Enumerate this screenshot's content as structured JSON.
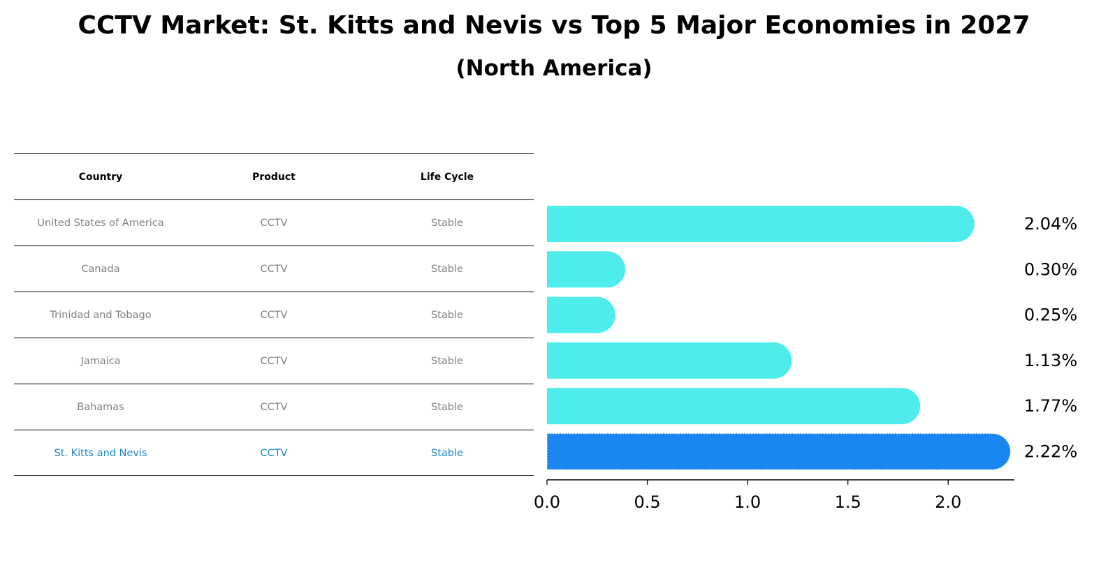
{
  "title": "CCTV Market: St. Kitts and Nevis vs Top 5 Major Economies in 2027",
  "subtitle": "(North America)",
  "table": {
    "headers": [
      "Country",
      "Product",
      "Life Cycle"
    ],
    "rows": [
      {
        "country": "United States of America",
        "product": "CCTV",
        "life_cycle": "Stable"
      },
      {
        "country": "Canada",
        "product": "CCTV",
        "life_cycle": "Stable"
      },
      {
        "country": "Trinidad and Tobago",
        "product": "CCTV",
        "life_cycle": "Stable"
      },
      {
        "country": "Jamaica",
        "product": "CCTV",
        "life_cycle": "Stable"
      },
      {
        "country": "Bahamas",
        "product": "CCTV",
        "life_cycle": "Stable"
      },
      {
        "country": "St. Kitts and Nevis",
        "product": "CCTV",
        "life_cycle": "Stable"
      }
    ]
  },
  "colors": {
    "bar": "#4EEDEB",
    "highlight_bar": "#1A86F2",
    "highlight_text": "#1A86C9",
    "row_text": "#808080"
  },
  "chart_data": {
    "type": "bar",
    "orientation": "horizontal",
    "categories": [
      "United States of America",
      "Canada",
      "Trinidad and Tobago",
      "Jamaica",
      "Bahamas",
      "St. Kitts and Nevis"
    ],
    "values": [
      2.04,
      0.3,
      0.25,
      1.13,
      1.77,
      2.22
    ],
    "value_labels": [
      "2.04%",
      "0.30%",
      "0.25%",
      "1.13%",
      "1.77%",
      "2.22%"
    ],
    "highlight_index": 5,
    "xlim": [
      0,
      2.33
    ],
    "xticks": [
      0.0,
      0.5,
      1.0,
      1.5,
      2.0
    ],
    "xtick_labels": [
      "0.0",
      "0.5",
      "1.0",
      "1.5",
      "2.0"
    ],
    "grid": false
  }
}
